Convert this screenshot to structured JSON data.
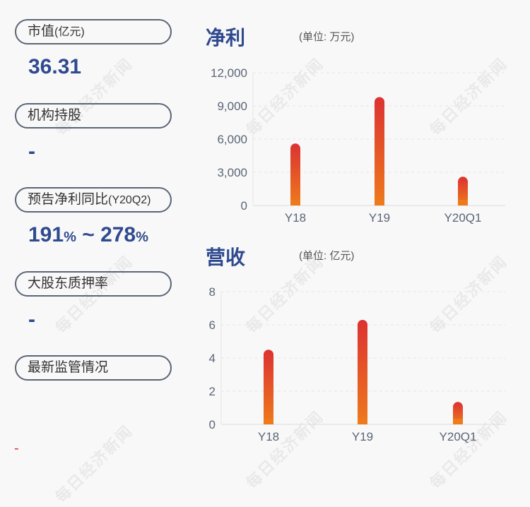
{
  "left_panel": {
    "items": [
      {
        "label": "市值",
        "label_suffix": "(亿元)",
        "value": "36.31"
      },
      {
        "label": "机构持股",
        "value": "-"
      },
      {
        "label": "预告净利同比",
        "label_suffix": "(Y20Q2)",
        "value_low": "191",
        "value_high": "278",
        "value_unit": "%",
        "value_sep": " ~ "
      },
      {
        "label": "大股东质押率",
        "value": "-"
      },
      {
        "label": "最新监管情况",
        "value": ""
      }
    ],
    "footer_mark": "-"
  },
  "watermark": "每日经济新闻",
  "colors": {
    "bar_top": "#dc3232",
    "bar_bottom": "#ee7a1c",
    "title": "#2f4a8f",
    "axis_text": "#5b6577"
  },
  "chart_data": [
    {
      "type": "bar",
      "title": "净利",
      "unit": "(单位: 万元)",
      "categories": [
        "Y18",
        "Y19",
        "Y20Q1"
      ],
      "values": [
        5600,
        9800,
        2600
      ],
      "ylim": [
        0,
        12000
      ],
      "yticks": [
        "0",
        "3,000",
        "6,000",
        "9,000",
        "12,000"
      ],
      "grid": true
    },
    {
      "type": "bar",
      "title": "营收",
      "unit": "(单位: 亿元)",
      "categories": [
        "Y18",
        "Y19",
        "Y20Q1"
      ],
      "values": [
        4.5,
        6.3,
        1.35
      ],
      "ylim": [
        0,
        8
      ],
      "yticks": [
        "0",
        "2",
        "4",
        "6",
        "8"
      ],
      "grid": true
    }
  ]
}
